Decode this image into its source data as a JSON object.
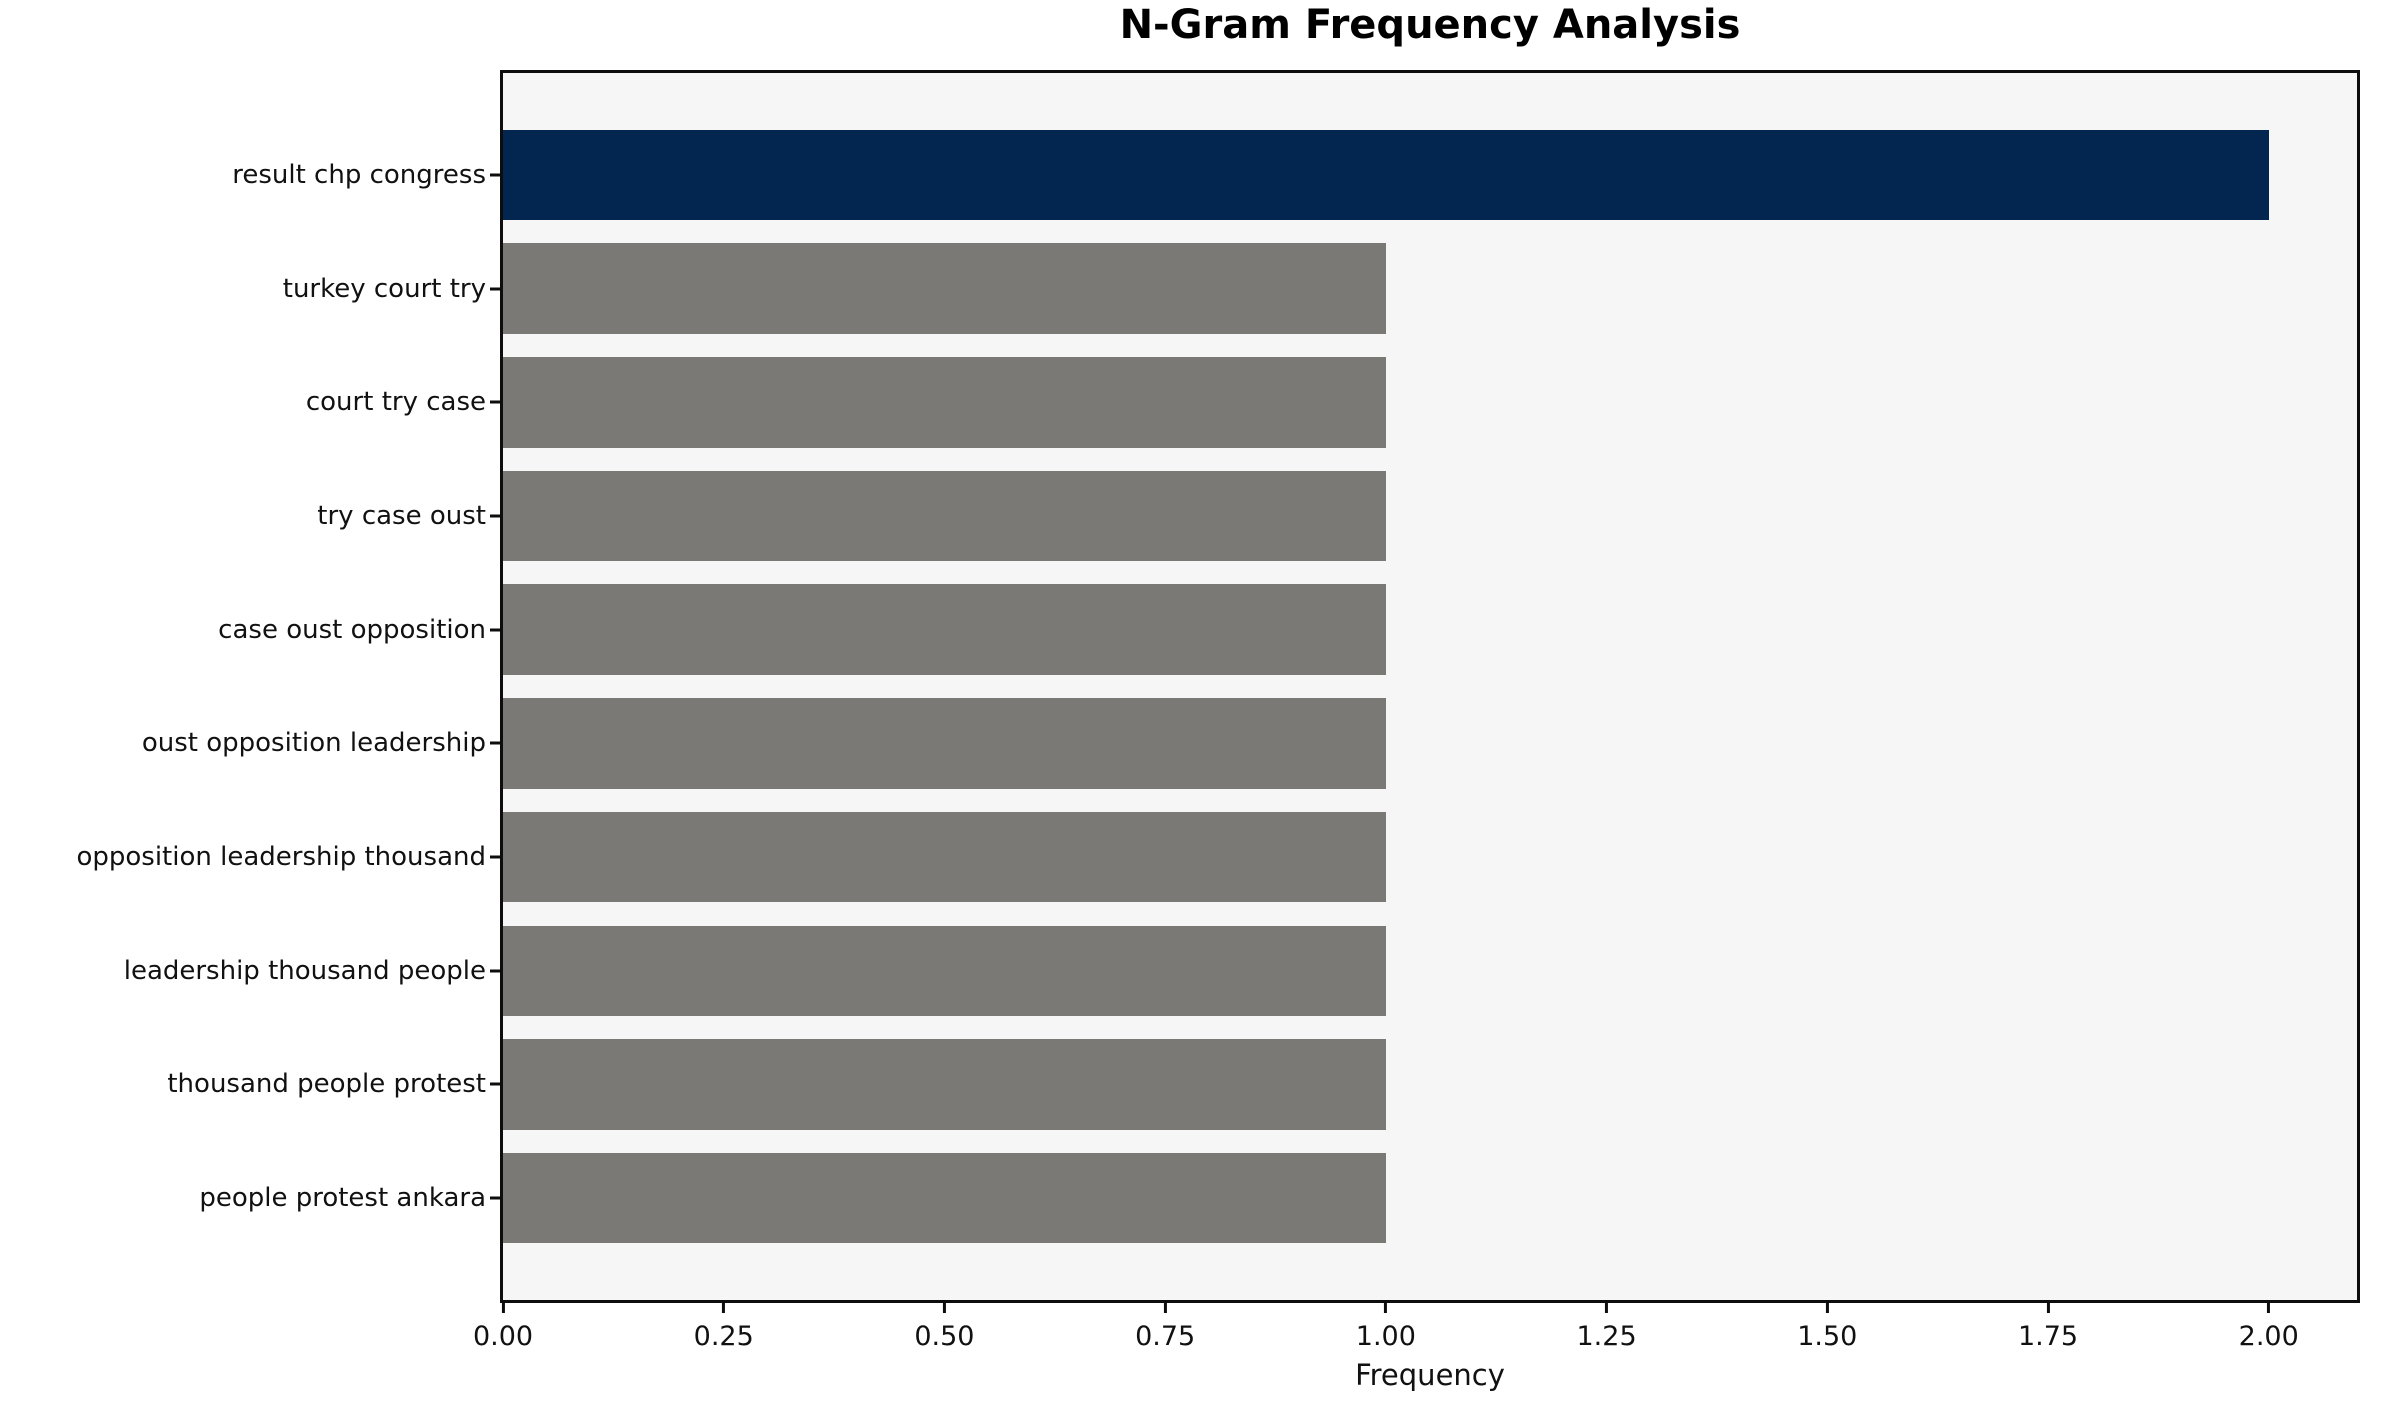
{
  "chart_data": {
    "type": "bar",
    "orientation": "horizontal",
    "title": "N-Gram Frequency Analysis",
    "xlabel": "Frequency",
    "ylabel": "",
    "categories": [
      "result chp congress",
      "turkey court try",
      "court try case",
      "try case oust",
      "case oust opposition",
      "oust opposition leadership",
      "opposition leadership thousand",
      "leadership thousand people",
      "thousand people protest",
      "people protest ankara"
    ],
    "values": [
      2,
      1,
      1,
      1,
      1,
      1,
      1,
      1,
      1,
      1
    ],
    "xlim": [
      0,
      2.1
    ],
    "xticks": [
      {
        "value": 0.0,
        "label": "0.00"
      },
      {
        "value": 0.25,
        "label": "0.25"
      },
      {
        "value": 0.5,
        "label": "0.50"
      },
      {
        "value": 0.75,
        "label": "0.75"
      },
      {
        "value": 1.0,
        "label": "1.00"
      },
      {
        "value": 1.25,
        "label": "1.25"
      },
      {
        "value": 1.5,
        "label": "1.50"
      },
      {
        "value": 1.75,
        "label": "1.75"
      },
      {
        "value": 2.0,
        "label": "2.00"
      }
    ],
    "bar_colors": [
      "#02264f",
      "#7a7975",
      "#7a7975",
      "#7a7975",
      "#7a7975",
      "#7a7975",
      "#7a7975",
      "#7a7975",
      "#7a7975",
      "#7a7975"
    ],
    "colors": {
      "highlight": "#02264f",
      "default": "#7a7975",
      "plot_background": "#f7f6f7",
      "figure_background": "#ffffff",
      "spine": "#0d0d0d",
      "text": "#000000"
    },
    "grid": false,
    "legend": "none"
  }
}
